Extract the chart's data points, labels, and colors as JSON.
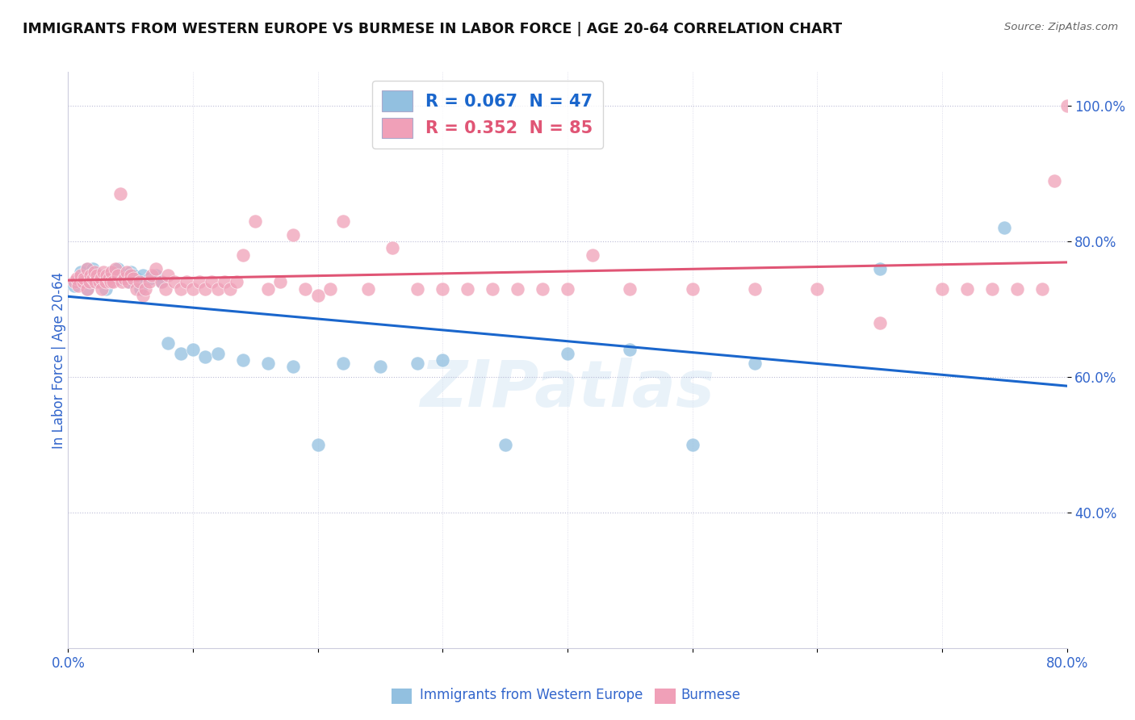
{
  "title": "IMMIGRANTS FROM WESTERN EUROPE VS BURMESE IN LABOR FORCE | AGE 20-64 CORRELATION CHART",
  "source": "Source: ZipAtlas.com",
  "ylabel": "In Labor Force | Age 20-64",
  "xlim": [
    0.0,
    0.8
  ],
  "ylim": [
    0.2,
    1.05
  ],
  "xticks": [
    0.0,
    0.1,
    0.2,
    0.3,
    0.4,
    0.5,
    0.6,
    0.7,
    0.8
  ],
  "xticklabels": [
    "0.0%",
    "",
    "",
    "",
    "",
    "",
    "",
    "",
    "80.0%"
  ],
  "yticks": [
    0.4,
    0.6,
    0.8,
    1.0
  ],
  "yticklabels": [
    "40.0%",
    "60.0%",
    "80.0%",
    "100.0%"
  ],
  "blue_R": 0.067,
  "blue_N": 47,
  "pink_R": 0.352,
  "pink_N": 85,
  "blue_color": "#92C0E0",
  "pink_color": "#F0A0B8",
  "blue_line_color": "#1A66CC",
  "pink_line_color": "#E05575",
  "watermark": "ZIPatlas",
  "blue_legend_label": "R = 0.067  N = 47",
  "pink_legend_label": "R = 0.352  N = 85",
  "bottom_label_blue": "Immigrants from Western Europe",
  "bottom_label_pink": "Burmese",
  "blue_x": [
    0.005,
    0.008,
    0.01,
    0.012,
    0.015,
    0.015,
    0.018,
    0.02,
    0.022,
    0.025,
    0.028,
    0.03,
    0.032,
    0.035,
    0.038,
    0.04,
    0.042,
    0.045,
    0.048,
    0.05,
    0.052,
    0.055,
    0.058,
    0.06,
    0.065,
    0.07,
    0.075,
    0.08,
    0.09,
    0.1,
    0.11,
    0.12,
    0.14,
    0.16,
    0.18,
    0.2,
    0.22,
    0.25,
    0.28,
    0.3,
    0.35,
    0.4,
    0.45,
    0.5,
    0.55,
    0.65,
    0.75
  ],
  "blue_y": [
    0.735,
    0.74,
    0.755,
    0.745,
    0.76,
    0.73,
    0.75,
    0.76,
    0.74,
    0.75,
    0.745,
    0.73,
    0.74,
    0.755,
    0.75,
    0.76,
    0.745,
    0.75,
    0.74,
    0.755,
    0.75,
    0.745,
    0.73,
    0.75,
    0.745,
    0.75,
    0.74,
    0.65,
    0.635,
    0.64,
    0.63,
    0.635,
    0.625,
    0.62,
    0.615,
    0.5,
    0.62,
    0.615,
    0.62,
    0.625,
    0.5,
    0.635,
    0.64,
    0.5,
    0.62,
    0.76,
    0.82
  ],
  "pink_x": [
    0.005,
    0.007,
    0.008,
    0.01,
    0.012,
    0.013,
    0.015,
    0.015,
    0.017,
    0.018,
    0.02,
    0.021,
    0.022,
    0.023,
    0.025,
    0.026,
    0.027,
    0.028,
    0.03,
    0.031,
    0.033,
    0.034,
    0.035,
    0.036,
    0.038,
    0.04,
    0.042,
    0.043,
    0.045,
    0.047,
    0.048,
    0.05,
    0.052,
    0.055,
    0.057,
    0.06,
    0.062,
    0.065,
    0.067,
    0.07,
    0.075,
    0.078,
    0.08,
    0.085,
    0.09,
    0.095,
    0.1,
    0.105,
    0.11,
    0.115,
    0.12,
    0.125,
    0.13,
    0.135,
    0.14,
    0.15,
    0.16,
    0.17,
    0.18,
    0.19,
    0.2,
    0.21,
    0.22,
    0.24,
    0.26,
    0.28,
    0.3,
    0.32,
    0.34,
    0.36,
    0.38,
    0.4,
    0.42,
    0.45,
    0.5,
    0.55,
    0.6,
    0.65,
    0.7,
    0.72,
    0.74,
    0.76,
    0.78,
    0.79,
    0.8
  ],
  "pink_y": [
    0.74,
    0.745,
    0.735,
    0.75,
    0.74,
    0.745,
    0.73,
    0.76,
    0.74,
    0.75,
    0.745,
    0.755,
    0.74,
    0.75,
    0.74,
    0.745,
    0.73,
    0.755,
    0.74,
    0.75,
    0.745,
    0.74,
    0.755,
    0.74,
    0.76,
    0.75,
    0.87,
    0.74,
    0.745,
    0.755,
    0.74,
    0.75,
    0.745,
    0.73,
    0.74,
    0.72,
    0.73,
    0.74,
    0.75,
    0.76,
    0.74,
    0.73,
    0.75,
    0.74,
    0.73,
    0.74,
    0.73,
    0.74,
    0.73,
    0.74,
    0.73,
    0.74,
    0.73,
    0.74,
    0.78,
    0.83,
    0.73,
    0.74,
    0.81,
    0.73,
    0.72,
    0.73,
    0.83,
    0.73,
    0.79,
    0.73,
    0.73,
    0.73,
    0.73,
    0.73,
    0.73,
    0.73,
    0.78,
    0.73,
    0.73,
    0.73,
    0.73,
    0.68,
    0.73,
    0.73,
    0.73,
    0.73,
    0.73,
    0.89,
    1.0
  ]
}
